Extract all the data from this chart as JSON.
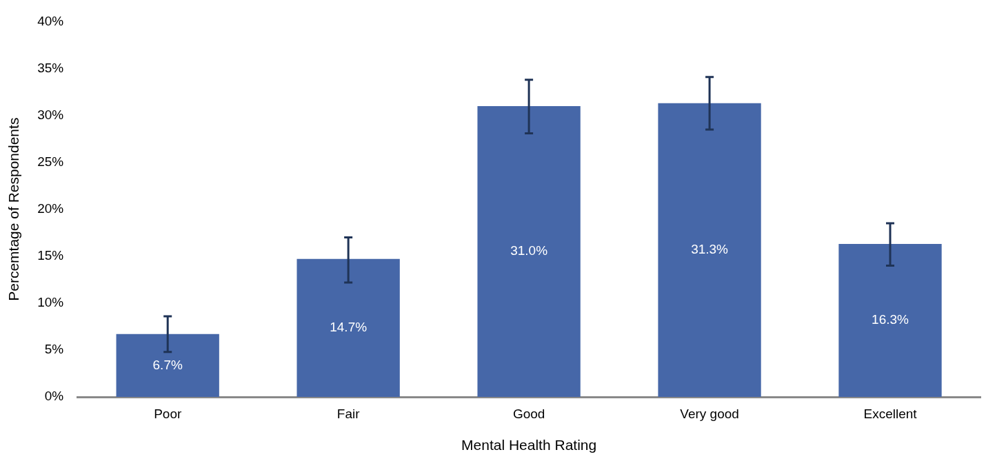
{
  "chart_data": {
    "type": "bar",
    "xlabel": "Mental Health Rating",
    "ylabel": "Percemtage of Respondents",
    "categories": [
      "Poor",
      "Fair",
      "Good",
      "Very good",
      "Excellent"
    ],
    "values": [
      6.7,
      14.7,
      31.0,
      31.3,
      16.3
    ],
    "color": "#4667a8",
    "errors": [
      [
        4.8,
        8.6
      ],
      [
        12.2,
        17.0
      ],
      [
        28.1,
        33.8
      ],
      [
        28.5,
        34.1
      ],
      [
        14.0,
        18.5
      ]
    ],
    "value_labels": [
      "6.7%",
      "14.7%",
      "31.0%",
      "31.3%",
      "16.3%"
    ],
    "ylim": [
      0,
      40
    ],
    "yticks": [
      {
        "value": 0,
        "label": "0%"
      },
      {
        "value": 5,
        "label": "5%"
      },
      {
        "value": 10,
        "label": "10%"
      },
      {
        "value": 15,
        "label": "15%"
      },
      {
        "value": 20,
        "label": "20%"
      },
      {
        "value": 25,
        "label": "25%"
      },
      {
        "value": 30,
        "label": "30%"
      },
      {
        "value": 35,
        "label": "35%"
      },
      {
        "value": 40,
        "label": "40%"
      }
    ],
    "grid": false,
    "legend": false
  }
}
